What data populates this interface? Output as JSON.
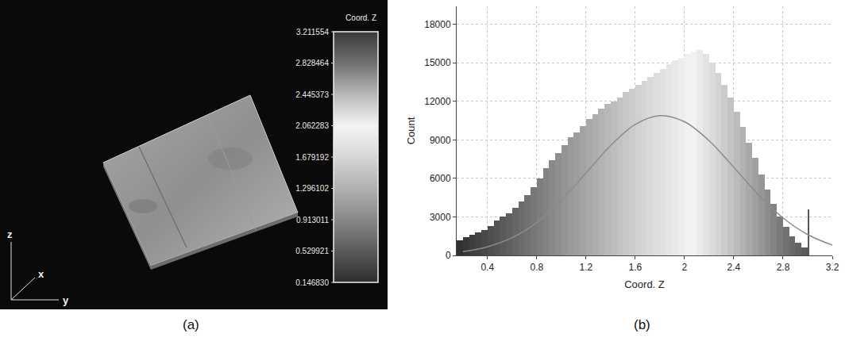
{
  "chart_data": [
    {
      "type": "colorbar",
      "label": "(a)",
      "title": "Coord. Z",
      "axis_labels": [
        "x",
        "y",
        "z"
      ],
      "clim": [
        0.14683,
        3.211554
      ],
      "cticks": [
        3.211554,
        2.828464,
        2.445373,
        2.062283,
        1.679192,
        1.296102,
        0.913011,
        0.529921,
        {
          "value": 0.14683,
          "label": "0.146830"
        }
      ]
    },
    {
      "type": "histogram",
      "label": "(b)",
      "xlabel": "Coord. Z",
      "ylabel": "Count",
      "bins": [
        0.15,
        0.2,
        0.25,
        0.3,
        0.35,
        0.4,
        0.45,
        0.5,
        0.55,
        0.6,
        0.65,
        0.7,
        0.75,
        0.8,
        0.85,
        0.9,
        0.95,
        1.0,
        1.05,
        1.1,
        1.15,
        1.2,
        1.25,
        1.3,
        1.35,
        1.4,
        1.45,
        1.5,
        1.55,
        1.6,
        1.65,
        1.7,
        1.75,
        1.8,
        1.85,
        1.9,
        1.95,
        2.0,
        2.05,
        2.1,
        2.15,
        2.2,
        2.25,
        2.3,
        2.35,
        2.4,
        2.45,
        2.5,
        2.55,
        2.6,
        2.65,
        2.7,
        2.75,
        2.8,
        2.85,
        2.9,
        2.95,
        3.0,
        3.01
      ],
      "counts": [
        1200,
        1400,
        1600,
        1800,
        2000,
        2300,
        2700,
        3000,
        3300,
        3700,
        4200,
        4700,
        5300,
        6000,
        6800,
        7400,
        8000,
        8600,
        9200,
        9600,
        10100,
        10600,
        11000,
        11400,
        11800,
        12000,
        12300,
        12700,
        13000,
        13300,
        13600,
        13900,
        14200,
        14500,
        14900,
        15200,
        15400,
        15700,
        15900,
        16000,
        15700,
        15000,
        14200,
        13300,
        12300,
        11200,
        10000,
        8800,
        7600,
        6300,
        5100,
        4000,
        3000,
        2200,
        1500,
        1000,
        600,
        3600
      ],
      "series": [
        {
          "type": "line",
          "color": "#8c8c8c",
          "x": [
            0.2,
            0.4,
            0.6,
            0.8,
            1.0,
            1.2,
            1.4,
            1.6,
            1.8,
            2.0,
            2.2,
            2.4,
            2.6,
            2.8,
            3.0,
            3.2
          ],
          "values": [
            290,
            670,
            1380,
            2560,
            4300,
            6420,
            8560,
            10200,
            10890,
            10410,
            8930,
            6860,
            4730,
            2920,
            1620,
            800
          ]
        }
      ],
      "xlim": [
        0.15,
        3.2
      ],
      "xticks": [
        0.4,
        0.8,
        1.2,
        1.6,
        2,
        2.4,
        2.8,
        3.2
      ],
      "ylim": [
        0,
        19400
      ],
      "yticks": [
        0,
        3000,
        6000,
        9000,
        12000,
        15000,
        18000
      ],
      "grid": true
    }
  ]
}
